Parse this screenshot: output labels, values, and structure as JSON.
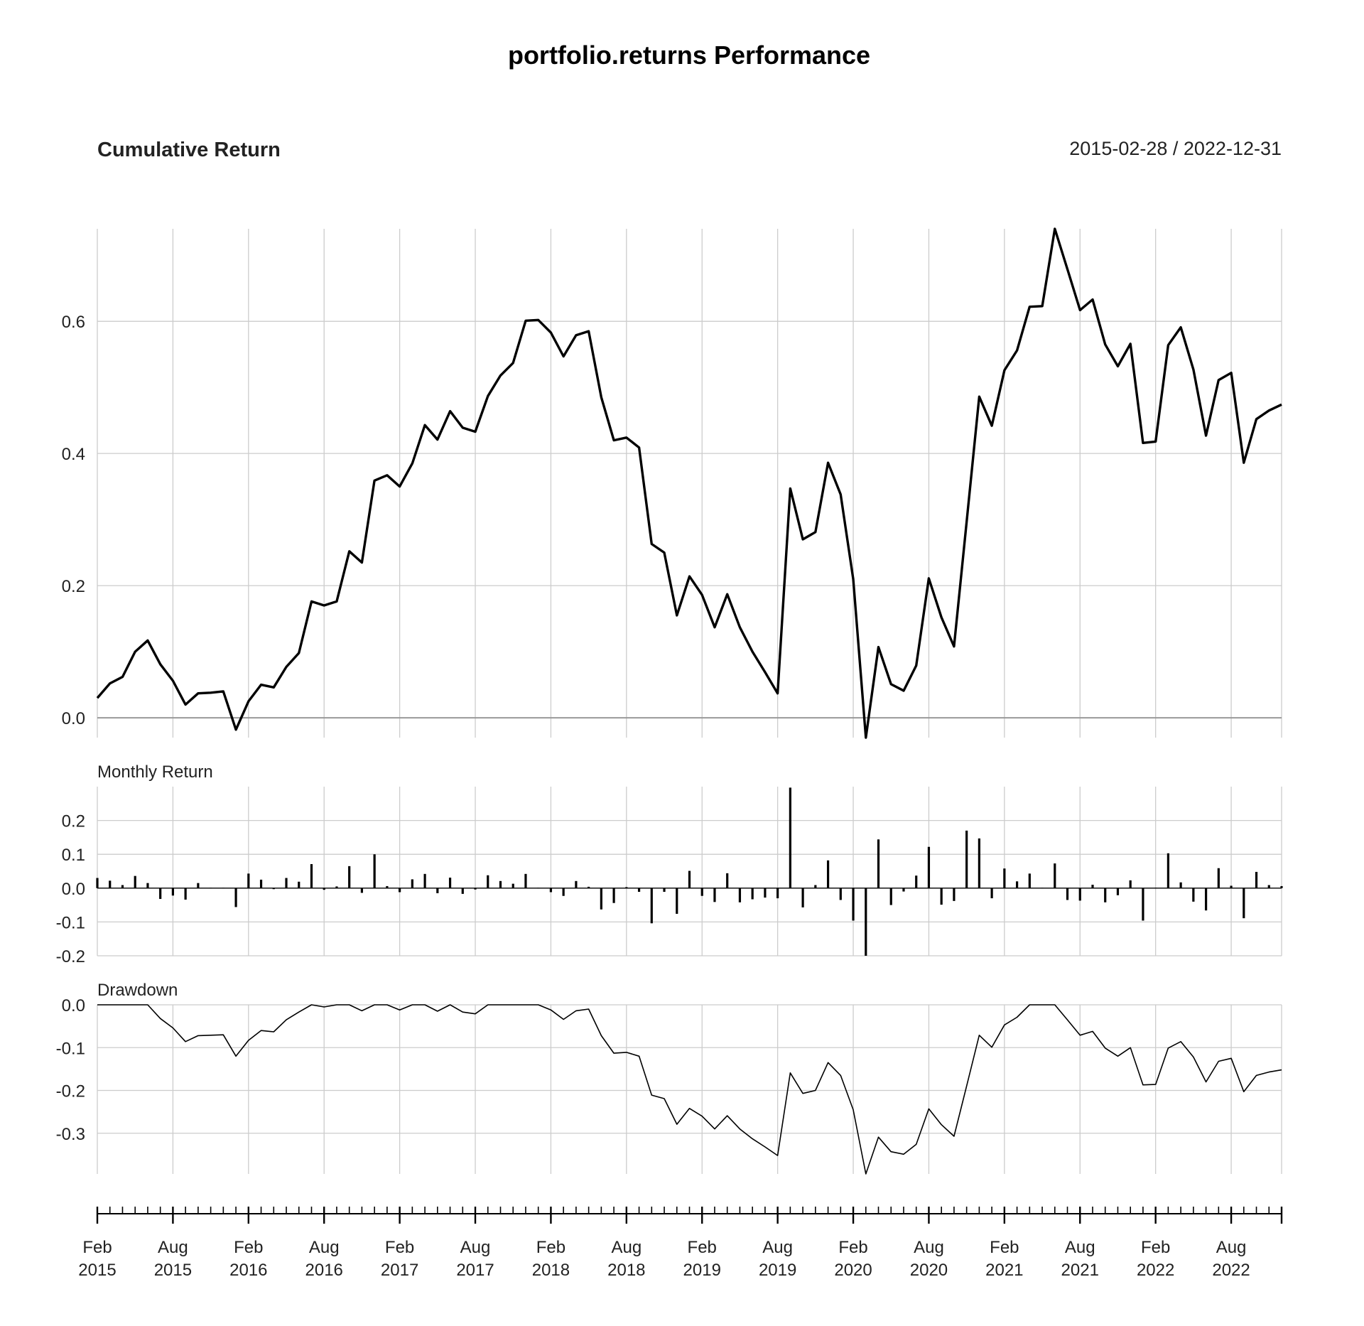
{
  "page": {
    "title": "portfolio.returns Performance",
    "date_range": "2015-02-28 / 2022-12-31"
  },
  "chart_data": [
    {
      "type": "line",
      "title": "Cumulative Return",
      "x": [
        "2015-02-28",
        "2015-03-31",
        "2015-04-30",
        "2015-05-31",
        "2015-06-30",
        "2015-07-31",
        "2015-08-31",
        "2015-09-30",
        "2015-10-31",
        "2015-11-30",
        "2015-12-31",
        "2016-01-31",
        "2016-02-29",
        "2016-03-31",
        "2016-04-30",
        "2016-05-31",
        "2016-06-30",
        "2016-07-31",
        "2016-08-31",
        "2016-09-30",
        "2016-10-31",
        "2016-11-30",
        "2016-12-31",
        "2017-01-31",
        "2017-02-28",
        "2017-03-31",
        "2017-04-30",
        "2017-05-31",
        "2017-06-30",
        "2017-07-31",
        "2017-08-31",
        "2017-09-30",
        "2017-10-31",
        "2017-11-30",
        "2017-12-31",
        "2018-01-31",
        "2018-02-28",
        "2018-03-31",
        "2018-04-30",
        "2018-05-31",
        "2018-06-30",
        "2018-07-31",
        "2018-08-31",
        "2018-09-30",
        "2018-10-31",
        "2018-11-30",
        "2018-12-31",
        "2019-01-31",
        "2019-02-28",
        "2019-03-31",
        "2019-04-30",
        "2019-05-31",
        "2019-06-30",
        "2019-07-31",
        "2019-08-31",
        "2019-09-30",
        "2019-10-31",
        "2019-11-30",
        "2019-12-31",
        "2020-01-31",
        "2020-02-29",
        "2020-03-31",
        "2020-04-30",
        "2020-05-31",
        "2020-06-30",
        "2020-07-31",
        "2020-08-31",
        "2020-09-30",
        "2020-10-31",
        "2020-11-30",
        "2020-12-31",
        "2021-01-31",
        "2021-02-28",
        "2021-03-31",
        "2021-04-30",
        "2021-05-31",
        "2021-06-30",
        "2021-07-31",
        "2021-08-31",
        "2021-09-30",
        "2021-10-31",
        "2021-11-30",
        "2021-12-31",
        "2022-01-31",
        "2022-02-28",
        "2022-03-31",
        "2022-04-30",
        "2022-05-31",
        "2022-06-30",
        "2022-07-31",
        "2022-08-31",
        "2022-09-30",
        "2022-10-31",
        "2022-11-30",
        "2022-12-31"
      ],
      "values": [
        0.03,
        0.052,
        0.062,
        0.1,
        0.117,
        0.081,
        0.056,
        0.02,
        0.037,
        0.038,
        0.04,
        -0.018,
        0.025,
        0.05,
        0.046,
        0.077,
        0.098,
        0.176,
        0.17,
        0.176,
        0.252,
        0.235,
        0.359,
        0.367,
        0.35,
        0.385,
        0.443,
        0.421,
        0.464,
        0.439,
        0.433,
        0.487,
        0.518,
        0.537,
        0.601,
        0.602,
        0.583,
        0.547,
        0.579,
        0.585,
        0.485,
        0.42,
        0.424,
        0.409,
        0.263,
        0.25,
        0.155,
        0.214,
        0.186,
        0.137,
        0.187,
        0.137,
        0.1,
        0.069,
        0.037,
        0.347,
        0.27,
        0.281,
        0.386,
        0.338,
        0.21,
        -0.03,
        0.107,
        0.051,
        0.041,
        0.079,
        0.211,
        0.152,
        0.108,
        0.296,
        0.486,
        0.442,
        0.526,
        0.556,
        0.622,
        0.623,
        0.74,
        0.679,
        0.617,
        0.633,
        0.565,
        0.532,
        0.566,
        0.416,
        0.418,
        0.564,
        0.591,
        0.527,
        0.427,
        0.511,
        0.522,
        0.386,
        0.452,
        0.465,
        0.474
      ],
      "yticks": [
        "0.0",
        "0.2",
        "0.4",
        "0.6"
      ],
      "ylim": [
        -0.03,
        0.74
      ],
      "grid": true
    },
    {
      "type": "bar",
      "title": "Monthly Return",
      "values": [
        0.03,
        0.022,
        0.009,
        0.036,
        0.015,
        -0.032,
        -0.022,
        -0.034,
        0.015,
        0.001,
        0.001,
        -0.056,
        0.043,
        0.025,
        -0.003,
        0.03,
        0.019,
        0.071,
        -0.005,
        0.005,
        0.065,
        -0.014,
        0.1,
        0.006,
        -0.012,
        0.026,
        0.042,
        -0.015,
        0.031,
        -0.017,
        -0.004,
        0.038,
        0.021,
        0.013,
        0.042,
        0.001,
        -0.012,
        -0.023,
        0.021,
        0.004,
        -0.063,
        -0.044,
        0.003,
        -0.011,
        -0.104,
        -0.011,
        -0.076,
        0.051,
        -0.023,
        -0.041,
        0.044,
        -0.042,
        -0.033,
        -0.028,
        -0.03,
        0.297,
        -0.057,
        0.009,
        0.082,
        -0.035,
        -0.096,
        -0.2,
        0.144,
        -0.05,
        -0.01,
        0.037,
        0.122,
        -0.049,
        -0.038,
        0.17,
        0.147,
        -0.03,
        0.058,
        0.02,
        0.043,
        0.001,
        0.073,
        -0.035,
        -0.037,
        0.01,
        -0.042,
        -0.021,
        0.023,
        -0.096,
        0.001,
        0.103,
        0.017,
        -0.04,
        -0.066,
        0.059,
        0.007,
        -0.089,
        0.048,
        0.009,
        0.006
      ],
      "yticks": [
        "0.2",
        "0.1",
        "0.0",
        "-0.1",
        "-0.2"
      ],
      "ylim": [
        -0.2,
        0.3
      ],
      "grid": true
    },
    {
      "type": "line",
      "title": "Drawdown",
      "values": [
        0,
        0,
        0,
        0,
        0,
        -0.032,
        -0.054,
        -0.086,
        -0.072,
        -0.071,
        -0.07,
        -0.12,
        -0.083,
        -0.06,
        -0.063,
        -0.035,
        -0.017,
        0,
        -0.005,
        0,
        0,
        -0.014,
        0,
        0,
        -0.012,
        0,
        0,
        -0.015,
        0,
        -0.017,
        -0.021,
        0,
        0,
        0,
        0,
        0,
        -0.012,
        -0.034,
        -0.014,
        -0.01,
        -0.072,
        -0.113,
        -0.111,
        -0.12,
        -0.211,
        -0.219,
        -0.279,
        -0.242,
        -0.26,
        -0.29,
        -0.259,
        -0.29,
        -0.313,
        -0.332,
        -0.352,
        -0.159,
        -0.207,
        -0.2,
        -0.135,
        -0.165,
        -0.245,
        -0.395,
        -0.309,
        -0.343,
        -0.349,
        -0.326,
        -0.243,
        -0.28,
        -0.307,
        -0.19,
        -0.071,
        -0.099,
        -0.047,
        -0.029,
        0,
        0,
        0,
        -0.035,
        -0.071,
        -0.062,
        -0.101,
        -0.12,
        -0.1,
        -0.187,
        -0.186,
        -0.101,
        -0.086,
        -0.122,
        -0.18,
        -0.132,
        -0.125,
        -0.203,
        -0.165,
        -0.157,
        -0.152
      ],
      "yticks": [
        "0.0",
        "-0.1",
        "-0.2",
        "-0.3"
      ],
      "ylim": [
        -0.395,
        0.0
      ],
      "grid": true
    }
  ],
  "x_axis": {
    "labels": [
      {
        "month": "Feb",
        "year": "2015"
      },
      {
        "month": "Aug",
        "year": "2015"
      },
      {
        "month": "Feb",
        "year": "2016"
      },
      {
        "month": "Aug",
        "year": "2016"
      },
      {
        "month": "Feb",
        "year": "2017"
      },
      {
        "month": "Aug",
        "year": "2017"
      },
      {
        "month": "Feb",
        "year": "2018"
      },
      {
        "month": "Aug",
        "year": "2018"
      },
      {
        "month": "Feb",
        "year": "2019"
      },
      {
        "month": "Aug",
        "year": "2019"
      },
      {
        "month": "Feb",
        "year": "2020"
      },
      {
        "month": "Aug",
        "year": "2020"
      },
      {
        "month": "Feb",
        "year": "2021"
      },
      {
        "month": "Aug",
        "year": "2021"
      },
      {
        "month": "Feb",
        "year": "2022"
      },
      {
        "month": "Aug",
        "year": "2022"
      }
    ]
  }
}
